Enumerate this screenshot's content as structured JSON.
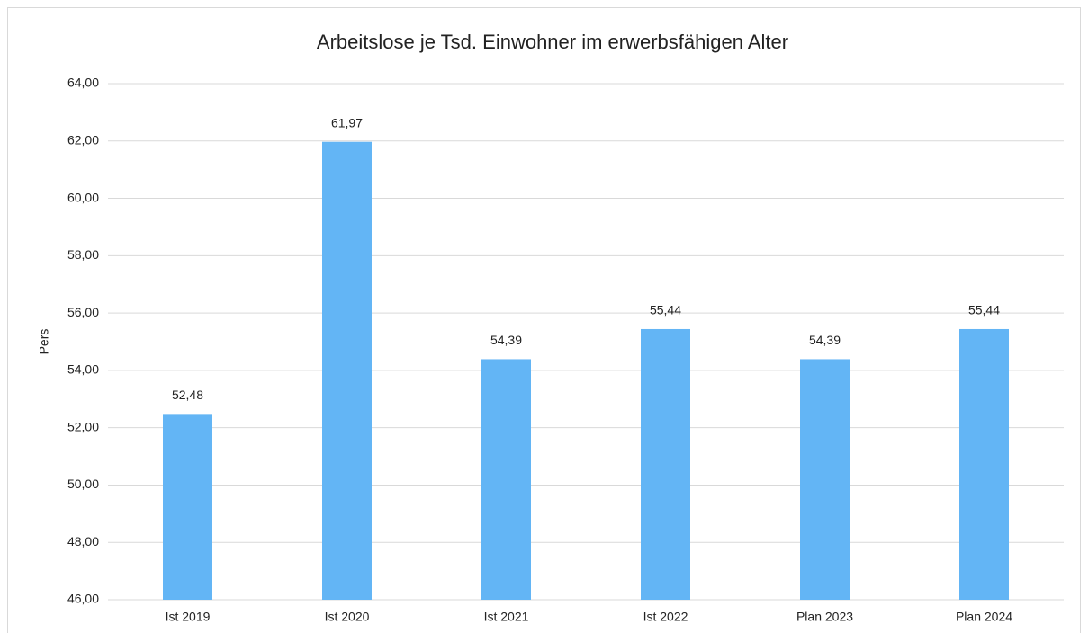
{
  "chart_data": {
    "type": "bar",
    "title": "Arbeitslose je Tsd. Einwohner im erwerbsfähigen Alter",
    "y_label": "Pers",
    "categories": [
      "Ist 2019",
      "Ist 2020",
      "Ist 2021",
      "Ist 2022",
      "Plan 2023",
      "Plan 2024"
    ],
    "values": [
      52.48,
      61.97,
      54.39,
      55.44,
      54.39,
      55.44
    ],
    "value_labels": [
      "52,48",
      "61,97",
      "54,39",
      "55,44",
      "54,39",
      "55,44"
    ],
    "color": "#63b5f5",
    "ylim": [
      46,
      64
    ],
    "yticks": [
      {
        "value": 46,
        "label": "46,00"
      },
      {
        "value": 48,
        "label": "48,00"
      },
      {
        "value": 50,
        "label": "50,00"
      },
      {
        "value": 52,
        "label": "52,00"
      },
      {
        "value": 54,
        "label": "54,00"
      },
      {
        "value": 56,
        "label": "56,00"
      },
      {
        "value": 58,
        "label": "58,00"
      },
      {
        "value": 60,
        "label": "60,00"
      },
      {
        "value": 62,
        "label": "62,00"
      },
      {
        "value": 64,
        "label": "64,00"
      }
    ],
    "grid": true
  }
}
